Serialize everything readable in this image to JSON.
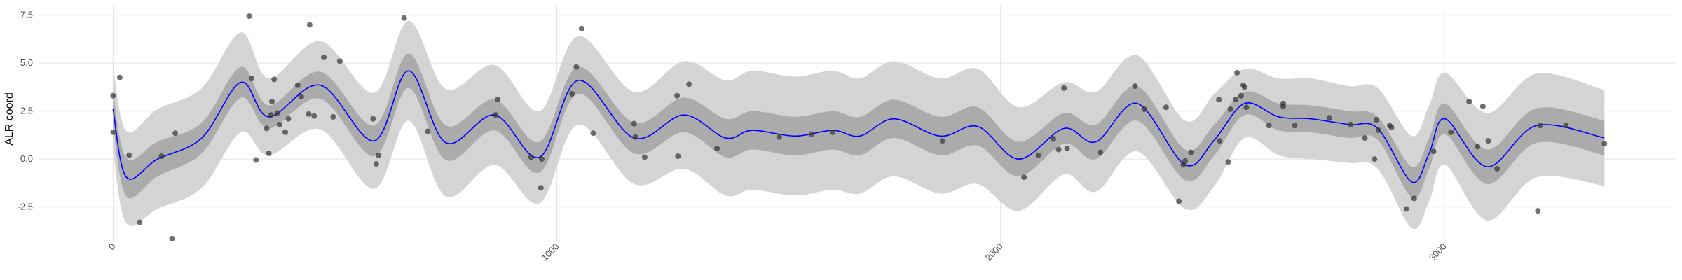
{
  "chart_data": {
    "type": "line",
    "ylabel": "ALR coord",
    "xlim": [
      -168,
      3520
    ],
    "ylim": [
      -4.3,
      8.0
    ],
    "xticks": [
      0,
      1000,
      2000,
      3000
    ],
    "yticks": [
      -2.5,
      {
        "value": 0,
        "label": "0.0"
      },
      2.5,
      {
        "value": 5,
        "label": "5.0"
      },
      7.5
    ],
    "grid": true,
    "x": [
      0,
      30,
      100,
      200,
      288,
      351,
      467,
      588,
      666,
      750,
      860,
      961,
      1048,
      1174,
      1286,
      1380,
      1440,
      1537,
      1622,
      1683,
      1760,
      1864,
      1949,
      2041,
      2143,
      2215,
      2308,
      2416,
      2482,
      2550,
      2627,
      2700,
      2785,
      2850,
      2927,
      2966,
      3002,
      3097,
      3208,
      3361
    ],
    "line": {
      "color": "#0000ff",
      "values": [
        2.6,
        -0.95,
        0.0,
        1.1,
        4.0,
        2.2,
        3.85,
        0.95,
        4.6,
        0.85,
        2.3,
        0.1,
        4.1,
        1.1,
        2.3,
        1.1,
        1.5,
        1.2,
        1.5,
        1.2,
        2.1,
        1.2,
        1.7,
        0.0,
        1.6,
        0.9,
        2.9,
        -0.3,
        1.0,
        2.9,
        2.2,
        2.1,
        1.8,
        1.6,
        -1.2,
        0.3,
        2.1,
        -0.4,
        1.75,
        1.1
      ]
    },
    "bands": [
      {
        "color": "#d4d4d4",
        "lower": [
          0.4,
          -3.35,
          -2.6,
          -1.5,
          1.4,
          0.2,
          1.55,
          -1.55,
          2.0,
          -1.95,
          -0.3,
          -2.3,
          1.8,
          -1.3,
          -0.5,
          -1.9,
          -1.6,
          -1.9,
          -1.6,
          -1.8,
          -0.9,
          -1.8,
          -1.3,
          -2.7,
          -0.8,
          -1.7,
          0.4,
          -2.6,
          -1.4,
          1.1,
          0.2,
          0.0,
          -0.2,
          -0.5,
          -3.6,
          -2.2,
          -0.3,
          -3.2,
          -0.95,
          -1.4
        ],
        "upper": [
          4.8,
          1.45,
          2.6,
          3.7,
          6.6,
          4.2,
          6.15,
          3.45,
          7.2,
          3.65,
          4.9,
          2.5,
          6.4,
          3.5,
          5.1,
          4.1,
          4.6,
          4.3,
          4.6,
          4.2,
          5.1,
          4.2,
          4.7,
          2.7,
          4.0,
          3.5,
          5.4,
          2.0,
          3.4,
          4.7,
          4.2,
          4.2,
          3.8,
          3.7,
          1.2,
          2.8,
          4.5,
          2.4,
          4.45,
          3.6
        ]
      },
      {
        "color": "#ababab",
        "lower": [
          1.7,
          -1.95,
          -0.9,
          0.3,
          3.2,
          1.6,
          3.15,
          0.15,
          3.7,
          -0.05,
          1.5,
          -0.7,
          3.4,
          0.3,
          1.4,
          0.1,
          0.5,
          0.2,
          0.5,
          0.2,
          1.1,
          0.2,
          0.7,
          -0.9,
          0.8,
          0.0,
          2.0,
          -1.1,
          0.2,
          2.3,
          1.5,
          1.4,
          1.1,
          1.0,
          -2.0,
          -0.5,
          1.3,
          -1.3,
          0.85,
          0.2
        ],
        "upper": [
          3.5,
          0.05,
          0.9,
          1.9,
          4.8,
          2.8,
          4.55,
          1.75,
          5.5,
          1.75,
          3.1,
          0.9,
          4.8,
          1.9,
          3.2,
          2.1,
          2.5,
          2.2,
          2.5,
          2.2,
          3.1,
          2.2,
          2.7,
          0.9,
          2.4,
          1.8,
          3.8,
          0.5,
          1.8,
          3.5,
          2.9,
          2.8,
          2.5,
          2.2,
          -0.4,
          1.1,
          2.9,
          0.5,
          2.65,
          2.0
        ]
      }
    ],
    "points": {
      "color": "#333333",
      "x": [
        0,
        0,
        15,
        36,
        60,
        109,
        133,
        140,
        307,
        312,
        322,
        346,
        351,
        358,
        363,
        356,
        370,
        375,
        388,
        395,
        416,
        424,
        441,
        443,
        453,
        475,
        496,
        511,
        586,
        593,
        598,
        656,
        709,
        862,
        867,
        942,
        964,
        966,
        1034,
        1044,
        1056,
        1082,
        1174,
        1177,
        1198,
        1271,
        1273,
        1298,
        1361,
        1501,
        1574,
        1622,
        1869,
        2053,
        2085,
        2119,
        2131,
        2143,
        2150,
        2225,
        2303,
        2324,
        2373,
        2402,
        2412,
        2416,
        2429,
        2492,
        2494,
        2513,
        2518,
        2530,
        2533,
        2542,
        2547,
        2550,
        2554,
        2605,
        2637,
        2637,
        2663,
        2741,
        2789,
        2821,
        2843,
        2847,
        2852,
        2877,
        2881,
        2915,
        2932,
        2976,
        3015,
        3056,
        3075,
        3087,
        3099,
        3119,
        3211,
        3216,
        3274,
        3361
      ],
      "y": [
        3.3,
        1.4,
        4.25,
        0.2,
        -3.3,
        0.15,
        -4.15,
        1.35,
        7.45,
        4.2,
        -0.05,
        1.6,
        0.3,
        3.0,
        4.15,
        2.3,
        2.4,
        1.8,
        1.4,
        2.1,
        3.85,
        3.25,
        2.35,
        7.0,
        2.25,
        5.3,
        2.2,
        5.1,
        2.1,
        -0.25,
        0.2,
        7.35,
        1.45,
        2.3,
        3.1,
        0.1,
        -1.5,
        0.0,
        3.4,
        4.8,
        6.8,
        1.35,
        1.85,
        1.15,
        0.1,
        3.3,
        0.15,
        3.9,
        0.55,
        1.15,
        1.3,
        1.4,
        0.95,
        -0.95,
        0.2,
        1.05,
        0.5,
        3.7,
        0.55,
        0.35,
        3.8,
        2.6,
        2.7,
        -2.2,
        -0.3,
        -0.1,
        0.35,
        3.1,
        0.95,
        -0.15,
        2.6,
        3.1,
        4.5,
        3.3,
        3.85,
        3.75,
        2.7,
        1.75,
        2.9,
        2.75,
        1.75,
        2.15,
        1.8,
        1.1,
        0.0,
        2.05,
        1.5,
        1.75,
        1.65,
        -2.6,
        -2.05,
        0.4,
        1.4,
        3.0,
        0.65,
        2.75,
        0.95,
        -0.5,
        -2.7,
        1.75,
        1.75,
        0.8
      ]
    }
  }
}
